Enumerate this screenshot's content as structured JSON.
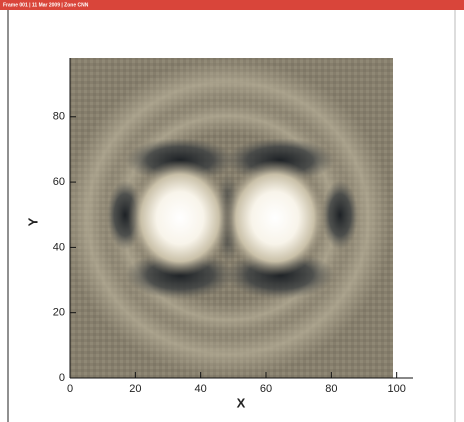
{
  "chart_data": {
    "type": "contour",
    "title": "Frame 001 | 11 Mar 2009 | Zone CNN",
    "xlabel": "X",
    "ylabel": "Y",
    "xlim": [
      0,
      105
    ],
    "ylim": [
      0,
      98
    ],
    "xticks": [
      0,
      20,
      40,
      60,
      80,
      100
    ],
    "yticks": [
      0,
      20,
      40,
      60,
      80
    ]
  }
}
